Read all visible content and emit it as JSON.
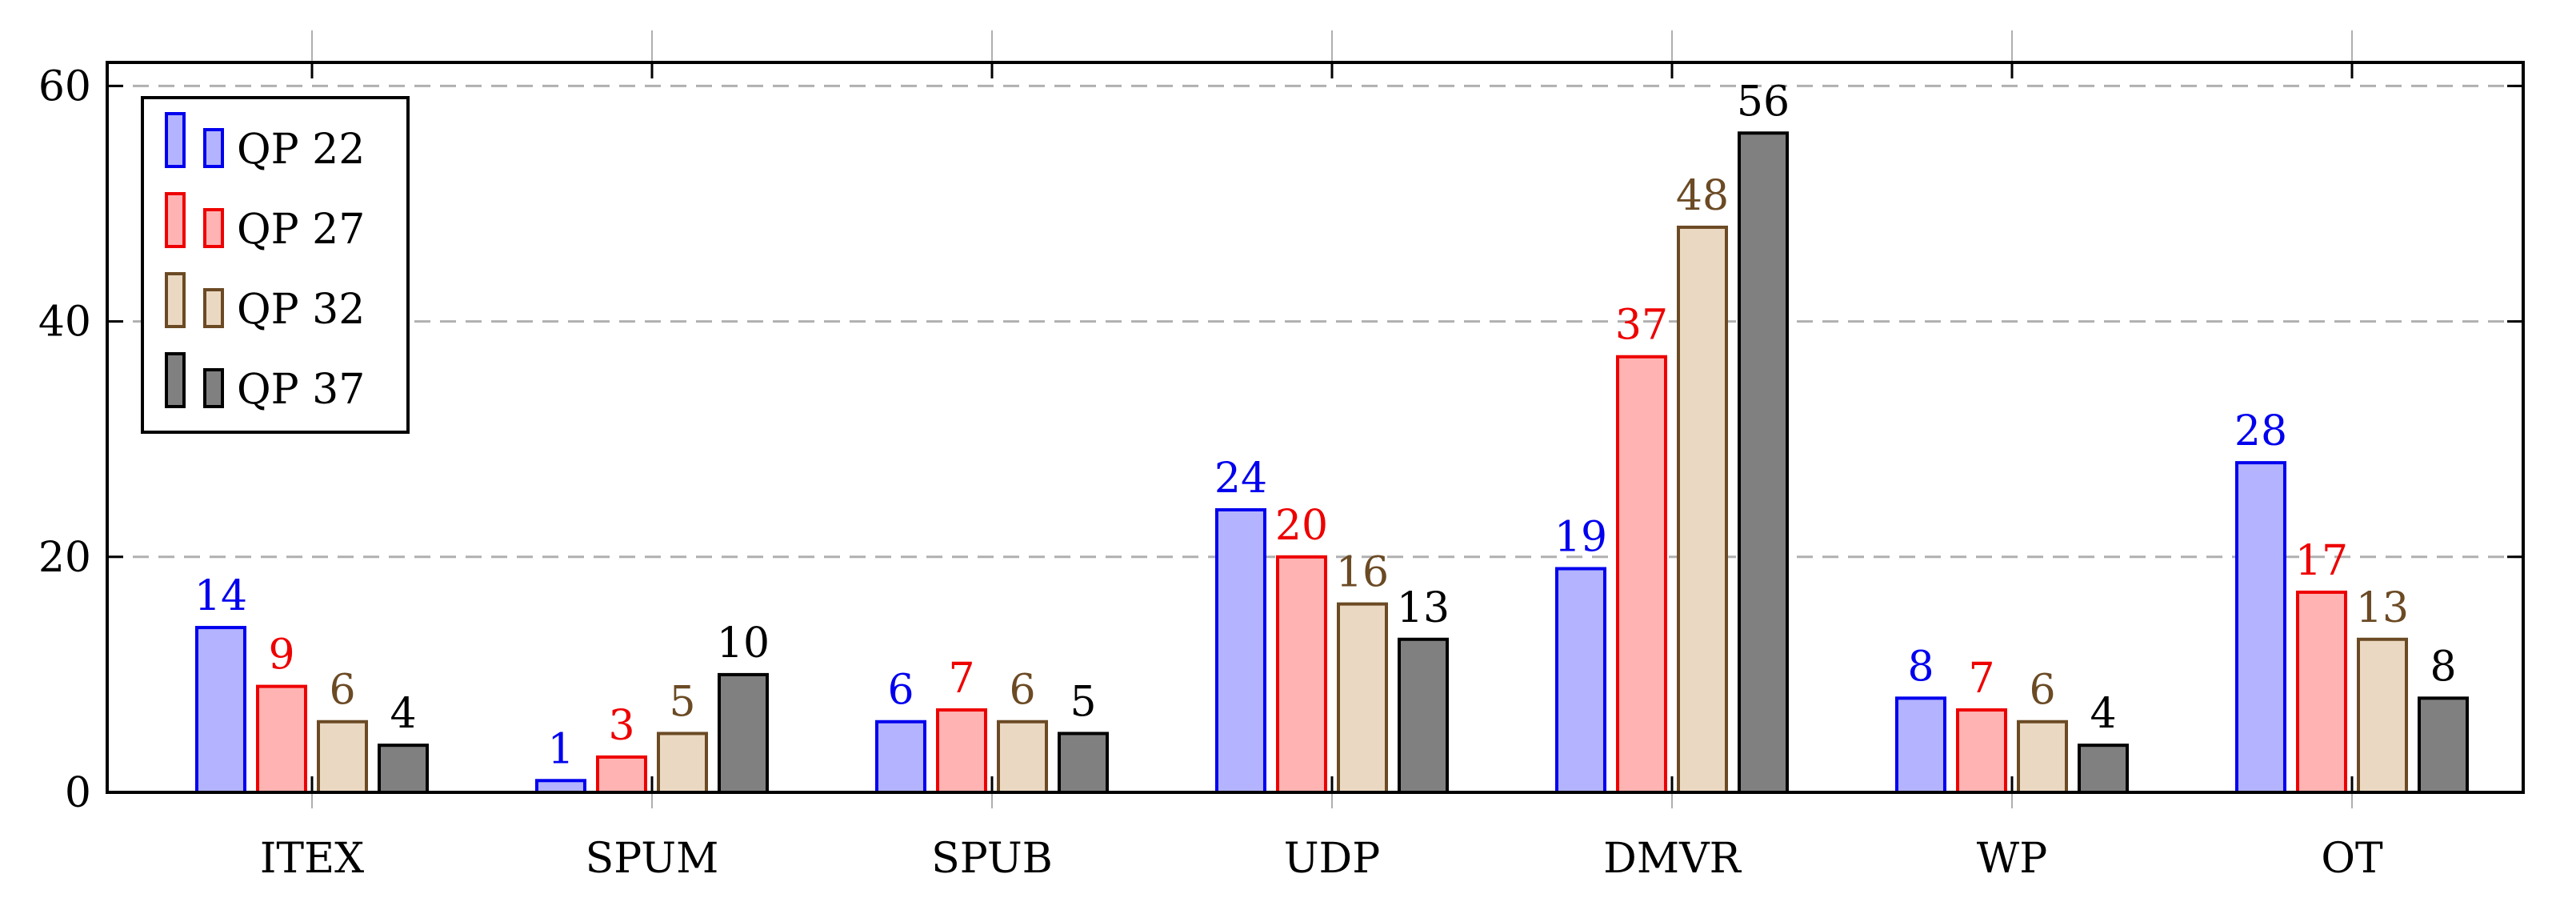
{
  "chart_data": {
    "type": "bar",
    "categories": [
      "ITEX",
      "SPUM",
      "SPUB",
      "UDP",
      "DMVR",
      "WP",
      "OT"
    ],
    "series": [
      {
        "name": "QP 22",
        "values": [
          14,
          1,
          6,
          24,
          19,
          8,
          28
        ],
        "fill": "#b3b3ff",
        "stroke": "#0000ee",
        "label_color": "#0000ee"
      },
      {
        "name": "QP 27",
        "values": [
          9,
          3,
          7,
          20,
          37,
          7,
          17
        ],
        "fill": "#ffb3b3",
        "stroke": "#ee0000",
        "label_color": "#ee0000"
      },
      {
        "name": "QP 32",
        "values": [
          6,
          5,
          6,
          16,
          48,
          6,
          13
        ],
        "fill": "#ead8c2",
        "stroke": "#6b4a24",
        "label_color": "#6b4a24"
      },
      {
        "name": "QP 37",
        "values": [
          4,
          10,
          5,
          13,
          56,
          4,
          8
        ],
        "fill": "#808080",
        "stroke": "#000000",
        "label_color": "#000000"
      }
    ],
    "ylim": [
      0,
      62
    ],
    "yticks": [
      0,
      20,
      40,
      60
    ],
    "grid": "horizontal dashed",
    "legend": "top-left",
    "title": "",
    "xlabel": "",
    "ylabel": ""
  }
}
